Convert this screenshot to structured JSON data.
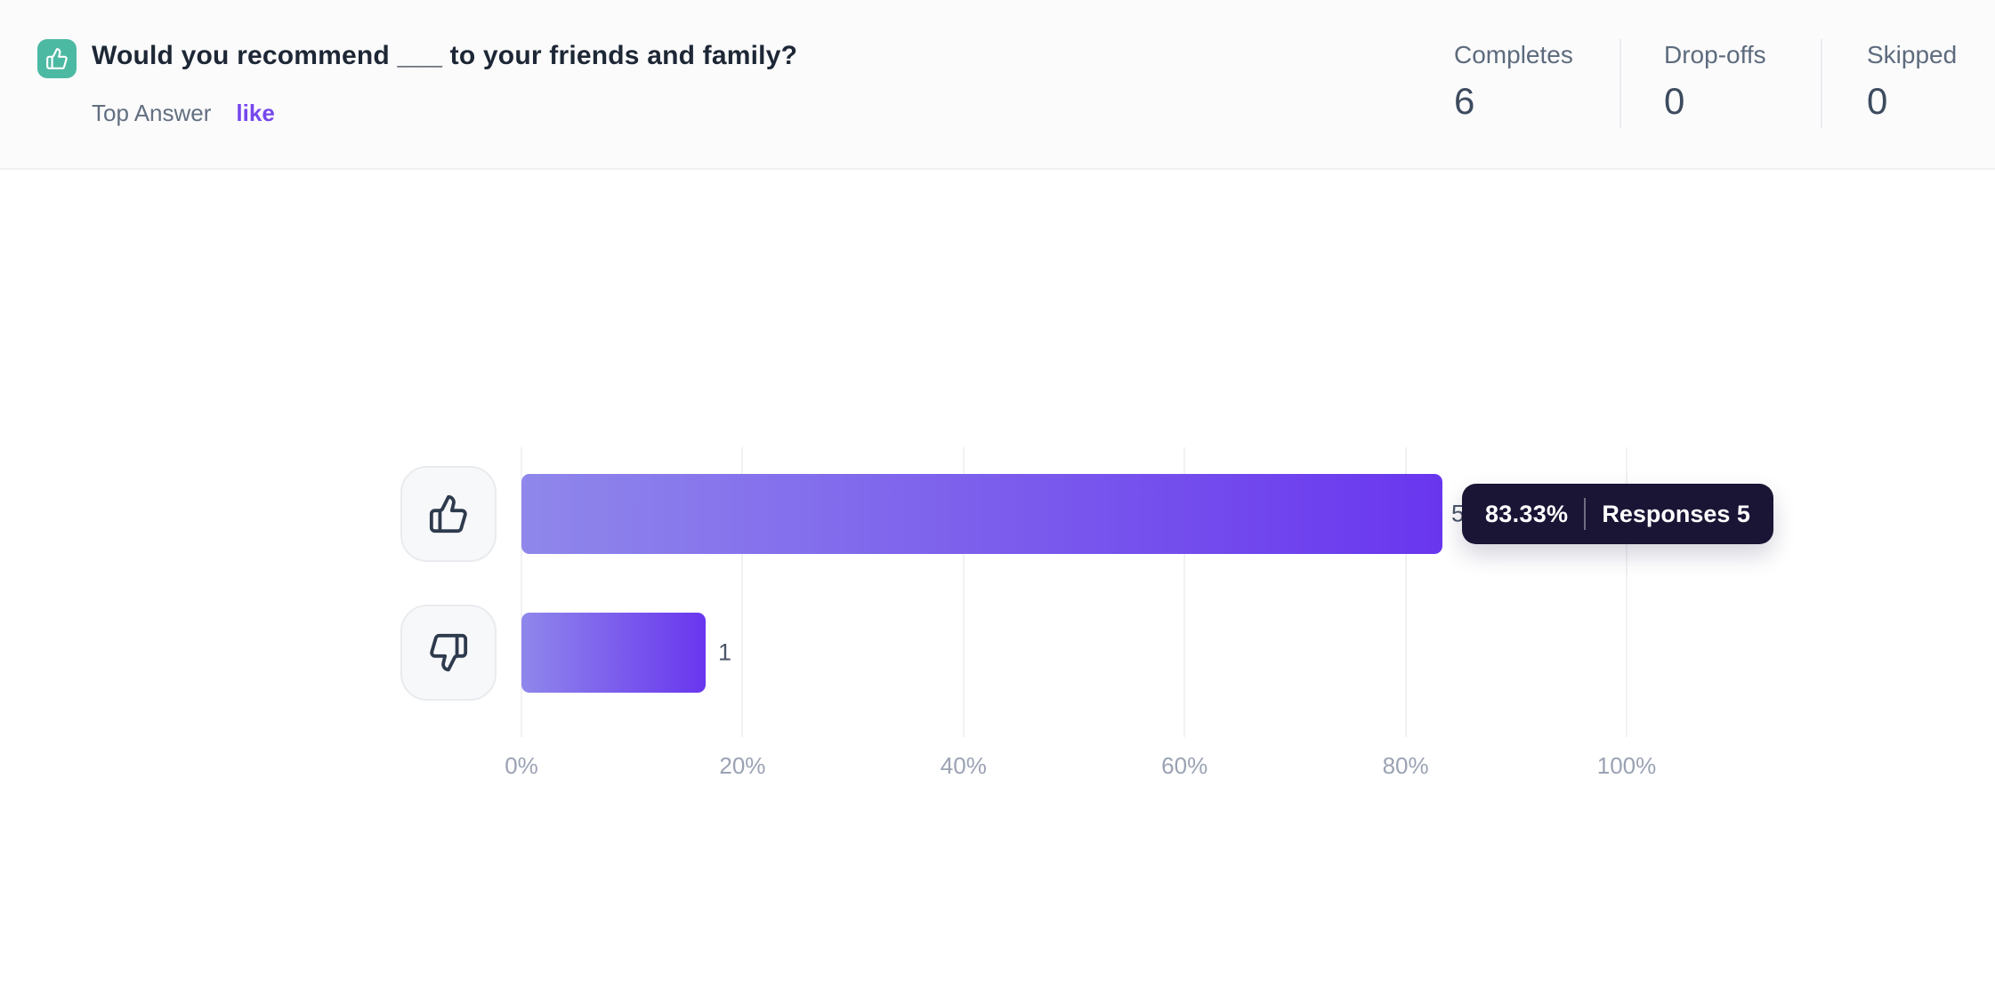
{
  "header": {
    "title": "Would you recommend ___ to your friends and family?",
    "top_answer_label": "Top Answer",
    "top_answer_value": "like",
    "stats": [
      {
        "label": "Completes",
        "value": "6"
      },
      {
        "label": "Drop-offs",
        "value": "0"
      },
      {
        "label": "Skipped",
        "value": "0"
      }
    ]
  },
  "chart_data": {
    "type": "bar",
    "orientation": "horizontal",
    "title": "",
    "categories": [
      "like",
      "dislike"
    ],
    "series": [
      {
        "name": "Responses",
        "values_percent": [
          83.33,
          16.67
        ],
        "responses": [
          5,
          1
        ]
      }
    ],
    "x_ticks": [
      "0%",
      "20%",
      "40%",
      "60%",
      "80%",
      "100%"
    ],
    "xlim": [
      0,
      100
    ],
    "grid": true,
    "legend": "none",
    "row_icons": [
      "thumbs-up-icon",
      "thumbs-down-icon"
    ]
  },
  "tooltip": {
    "percent": "83.33%",
    "responses_label": "Responses 5"
  },
  "colors": {
    "header_icon_bg": "#4CB9A3",
    "accent_purple": "#7547EC",
    "bar_gradient_start": "#8F87EB",
    "bar_gradient_end": "#6936EE",
    "tooltip_bg": "#1A1435",
    "axis_label": "#9aa2b3"
  }
}
